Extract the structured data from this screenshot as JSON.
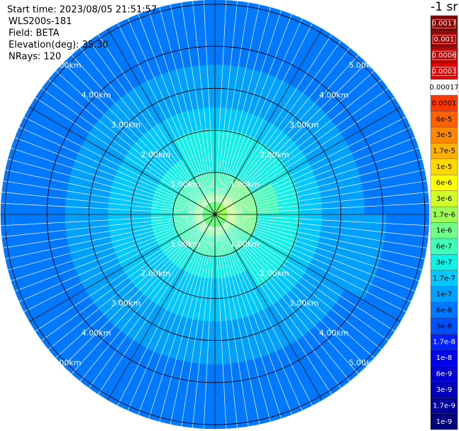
{
  "chart_data": {
    "type": "polar_heatmap",
    "title": "-1 sr",
    "info": [
      "Start time: 2023/08/05 21:51:57",
      "WLS200s-181",
      "Field: BETA",
      "Elevation(deg): 35.30",
      "NRays: 120"
    ],
    "rlim": [
      0,
      5.1
    ],
    "rticks": [
      {
        "value": 1,
        "label": "1.00km"
      },
      {
        "value": 2,
        "label": "2.00km"
      },
      {
        "value": 3,
        "label": "3.00km"
      },
      {
        "value": 4,
        "label": "4.00km"
      },
      {
        "value": 5,
        "label": "5.00km"
      }
    ],
    "azimuth_bins": [
      0,
      30,
      60,
      90,
      120,
      150,
      180,
      210,
      240,
      270,
      300,
      330,
      360
    ],
    "range_bins": [
      0,
      0.51,
      1.02,
      1.53,
      2.04,
      2.55,
      3.06,
      3.57,
      4.08,
      4.59,
      5.1
    ],
    "values": [
      [
        1.2e-06,
        8e-07,
        4e-07,
        3e-07,
        2e-07,
        1.5e-07,
        1.1e-07,
        9e-08,
        7e-08,
        8e-08
      ],
      [
        2e-06,
        1.2e-06,
        5e-07,
        3e-07,
        2e-07,
        1.5e-07,
        1.2e-07,
        9e-08,
        8e-08,
        7e-08
      ],
      [
        2e-06,
        1.4e-06,
        6e-07,
        3e-07,
        2e-07,
        1.4e-07,
        1.1e-07,
        9e-08,
        7e-08,
        6e-08
      ],
      [
        1.8e-06,
        1.2e-06,
        5e-07,
        3e-07,
        2e-07,
        1.5e-07,
        1.1e-07,
        1e-07,
        8e-08,
        7e-08
      ],
      [
        1.5e-06,
        9e-07,
        4e-07,
        3e-07,
        1.8e-07,
        1.3e-07,
        1.1e-07,
        9e-08,
        8e-08,
        7e-08
      ],
      [
        1.3e-06,
        8e-07,
        4e-07,
        2.5e-07,
        1.8e-07,
        1.3e-07,
        1e-07,
        8e-08,
        7e-08,
        6e-08
      ],
      [
        1.2e-06,
        7e-07,
        4e-07,
        2.5e-07,
        1.8e-07,
        1.3e-07,
        1e-07,
        8e-08,
        7e-08,
        6e-08
      ],
      [
        1.2e-06,
        7e-07,
        4e-07,
        2.5e-07,
        1.8e-07,
        1.3e-07,
        1e-07,
        8e-08,
        7e-08,
        6e-08
      ],
      [
        1.1e-06,
        7e-07,
        3.5e-07,
        2.5e-07,
        1.7e-07,
        1.3e-07,
        1e-07,
        8e-08,
        7e-08,
        6e-08
      ],
      [
        1.1e-06,
        7e-07,
        3.5e-07,
        2.5e-07,
        1.7e-07,
        1.2e-07,
        1e-07,
        8e-08,
        7e-08,
        6e-08
      ],
      [
        1.1e-06,
        7e-07,
        3.5e-07,
        2.5e-07,
        1.7e-07,
        1.3e-07,
        1e-07,
        8e-08,
        7e-08,
        7e-08
      ],
      [
        1.2e-06,
        8e-07,
        4e-07,
        3e-07,
        2e-07,
        1.5e-07,
        1.1e-07,
        9e-08,
        8e-08,
        7e-08
      ]
    ],
    "colorbar": {
      "ticks": [
        {
          "value": 1e-09,
          "label": "1e-9"
        },
        {
          "value": 1.7e-09,
          "label": "1.7e-9"
        },
        {
          "value": 3e-09,
          "label": "3e-9"
        },
        {
          "value": 6e-09,
          "label": "6e-9"
        },
        {
          "value": 1e-08,
          "label": "1e-8"
        },
        {
          "value": 1.7e-08,
          "label": "1.7e-8"
        },
        {
          "value": 3e-08,
          "label": "3e-8"
        },
        {
          "value": 6e-08,
          "label": "6e-8"
        },
        {
          "value": 1e-07,
          "label": "1e-7"
        },
        {
          "value": 1.7e-07,
          "label": "1.7e-7"
        },
        {
          "value": 3e-07,
          "label": "3e-7"
        },
        {
          "value": 6e-07,
          "label": "6e-7"
        },
        {
          "value": 1e-06,
          "label": "1e-6"
        },
        {
          "value": 1.7e-06,
          "label": "1.7e-6"
        },
        {
          "value": 3e-06,
          "label": "3e-6"
        },
        {
          "value": 6e-06,
          "label": "6e-6"
        },
        {
          "value": 1e-05,
          "label": "1e-5"
        },
        {
          "value": 1.7e-05,
          "label": "1.7e-5"
        },
        {
          "value": 3e-05,
          "label": "3e-5"
        },
        {
          "value": 6e-05,
          "label": "6e-5"
        },
        {
          "value": 0.0001,
          "label": "0.0001"
        },
        {
          "value": 0.00017,
          "label": "0.00017"
        },
        {
          "value": 0.0003,
          "label": "0.0003"
        },
        {
          "value": 0.0006,
          "label": "0.0006"
        },
        {
          "value": 0.001,
          "label": "0.001"
        },
        {
          "value": 0.0017,
          "label": "0.0017"
        }
      ],
      "colors": [
        "#00007f",
        "#00009c",
        "#0000b8",
        "#0000d4",
        "#0000f0",
        "#0020ff",
        "#0050ff",
        "#0078ff",
        "#00a0ff",
        "#00c8ff",
        "#10f0e6",
        "#40ffb7",
        "#70ff87",
        "#a0ff57",
        "#d0ff27",
        "#ffff00",
        "#ffd800",
        "#ffb000",
        "#ff8800",
        "#ff6000",
        "#ff3800",
        "#ffffff",
        "#e00000",
        "#c00000",
        "#a00000",
        "#800000"
      ]
    }
  }
}
